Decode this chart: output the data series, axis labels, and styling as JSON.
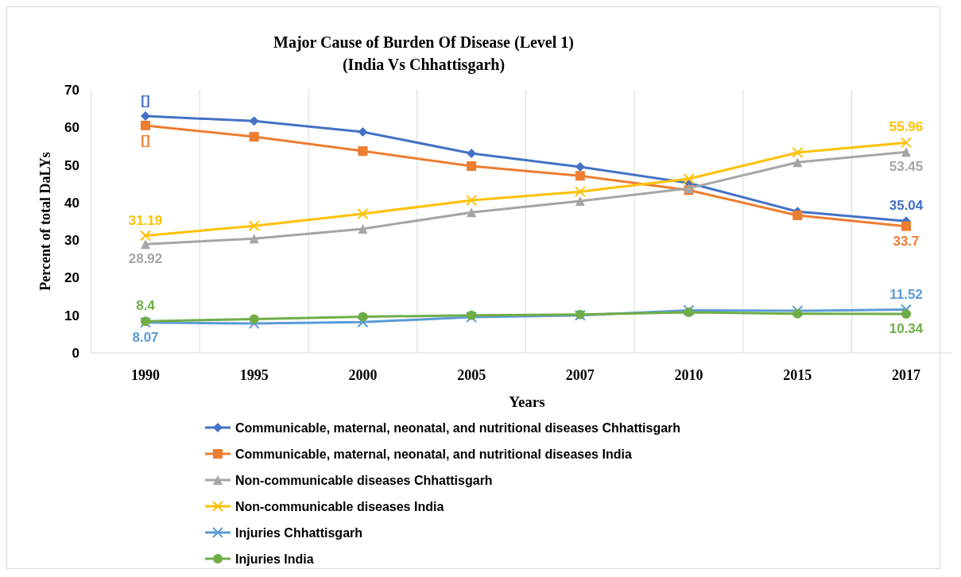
{
  "chart_data": {
    "type": "line",
    "title": "Major  Cause of Burden Of Disease (Level  1)\n(India  Vs Chhattisgarh)",
    "xlabel": "Years",
    "ylabel": "Percent of total DaLYs",
    "categories": [
      "1990",
      "1995",
      "2000",
      "2005",
      "2007",
      "2010",
      "2015",
      "2017"
    ],
    "ylim": [
      0,
      70
    ],
    "yticks": [
      0,
      10,
      20,
      30,
      40,
      50,
      60,
      70
    ],
    "grid": "x",
    "legend": "bottom",
    "series": [
      {
        "name": "Communicable, maternal, neonatal, and nutritional diseases Chhattisgarh",
        "color": "#4472c4",
        "marker": "diamond",
        "values": [
          63.0,
          61.7,
          58.8,
          53.1,
          49.5,
          45.2,
          37.6,
          35.04
        ],
        "value_labels": [
          "[]",
          null,
          null,
          null,
          null,
          null,
          null,
          "35.04"
        ]
      },
      {
        "name": "Communicable, maternal, neonatal, and nutritional diseases India",
        "color": "#ed7d31",
        "marker": "square",
        "values": [
          60.5,
          57.5,
          53.7,
          49.7,
          47.1,
          43.3,
          36.6,
          33.7
        ],
        "value_labels": [
          "[]",
          null,
          null,
          null,
          null,
          null,
          null,
          "33.7"
        ]
      },
      {
        "name": "Non-communicable diseases Chhattisgarh",
        "color": "#a5a5a5",
        "marker": "triangle",
        "values": [
          28.92,
          30.4,
          33.0,
          37.4,
          40.4,
          43.8,
          50.7,
          53.45
        ],
        "value_labels": [
          "28.92",
          null,
          null,
          null,
          null,
          null,
          null,
          "53.45"
        ]
      },
      {
        "name": "Non-communicable diseases India",
        "color": "#ffc000",
        "marker": "cross",
        "values": [
          31.19,
          33.8,
          37.0,
          40.6,
          42.9,
          46.3,
          53.3,
          55.96
        ],
        "value_labels": [
          "31.19",
          null,
          null,
          null,
          null,
          null,
          null,
          "55.96"
        ]
      },
      {
        "name": "Injuries Chhattisgarh",
        "color": "#5b9bd5",
        "marker": "cross",
        "values": [
          8.07,
          7.8,
          8.2,
          9.5,
          10.0,
          11.3,
          11.2,
          11.52
        ],
        "value_labels": [
          "8.07",
          null,
          null,
          null,
          null,
          null,
          null,
          "11.52"
        ]
      },
      {
        "name": "Injuries India",
        "color": "#70ad47",
        "marker": "circle",
        "values": [
          8.4,
          9.0,
          9.6,
          10.0,
          10.2,
          10.8,
          10.4,
          10.34
        ],
        "value_labels": [
          "8.4",
          null,
          null,
          null,
          null,
          null,
          null,
          "10.34"
        ]
      }
    ]
  }
}
